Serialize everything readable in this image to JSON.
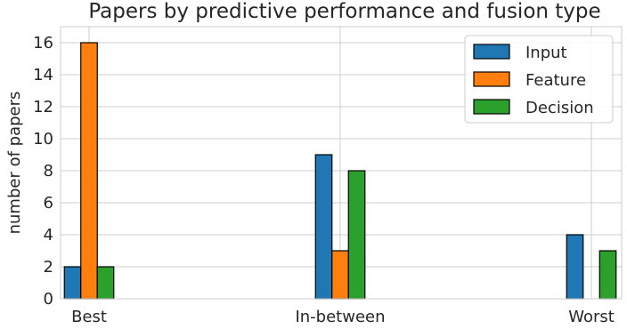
{
  "chart_data": {
    "type": "bar",
    "title": "Papers by predictive performance and fusion type",
    "xlabel": "",
    "ylabel": "number of papers",
    "categories": [
      "Best",
      "In-between",
      "Worst"
    ],
    "series": [
      {
        "name": "Input",
        "values": [
          2,
          9,
          4
        ],
        "color": "#1f77b4"
      },
      {
        "name": "Feature",
        "values": [
          16,
          3,
          0
        ],
        "color": "#ff7f0e"
      },
      {
        "name": "Decision",
        "values": [
          2,
          8,
          3
        ],
        "color": "#2ca02c"
      }
    ],
    "ylim": [
      0,
      17
    ],
    "yticks": [
      0,
      2,
      4,
      6,
      8,
      10,
      12,
      14,
      16
    ],
    "grid": true,
    "legend_position": "top-right"
  }
}
